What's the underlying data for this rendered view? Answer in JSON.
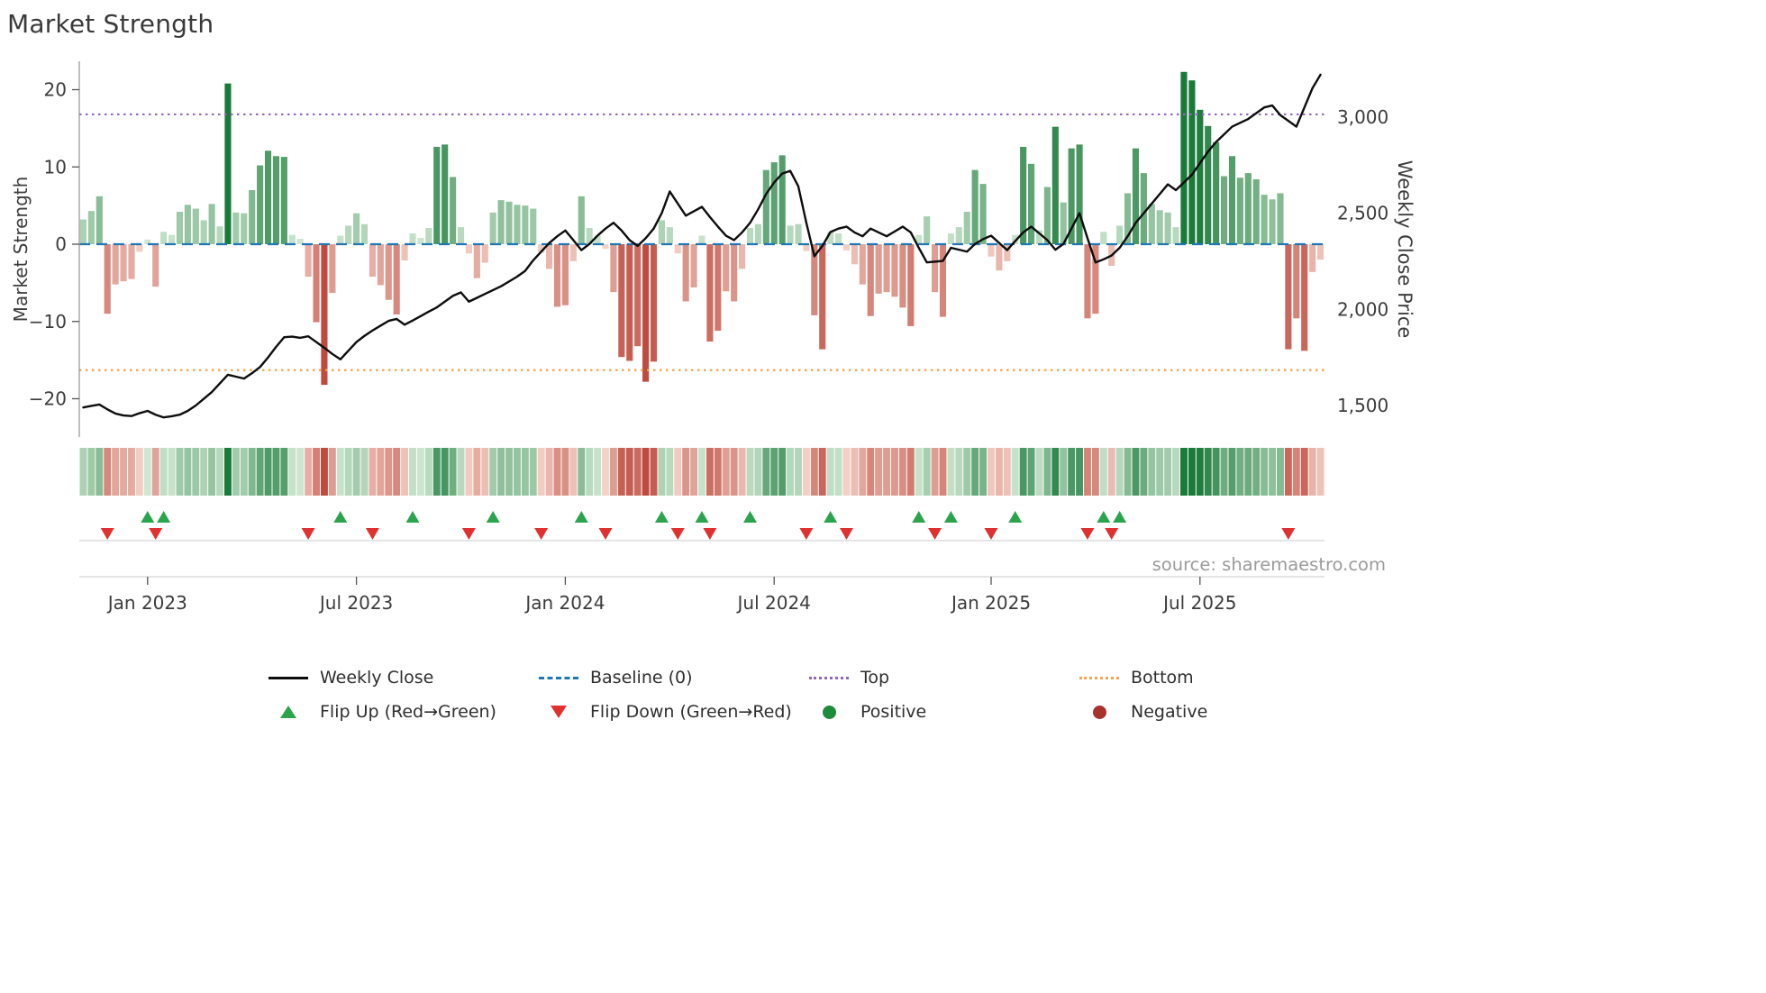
{
  "title": "Market Strength",
  "source": "source: sharemaestro.com",
  "axes": {
    "left_label": "Market Strength",
    "right_label": "Weekly Close Price",
    "left_ticks": [
      "20",
      "10",
      "0",
      "−10",
      "−20"
    ],
    "left_tick_values": [
      20,
      10,
      0,
      -10,
      -20
    ],
    "right_ticks": [
      "3,000",
      "2,500",
      "2,000",
      "1,500"
    ],
    "right_tick_values": [
      3000,
      2500,
      2000,
      1500
    ],
    "x_ticks": [
      "Jan 2023",
      "Jul 2023",
      "Jan 2024",
      "Jul 2024",
      "Jan 2025",
      "Jul 2025"
    ],
    "x_tick_indices": [
      8,
      34,
      60,
      86,
      113,
      139
    ]
  },
  "chart_data": {
    "type": "bar+line",
    "title": "Market Strength",
    "x_unit": "week",
    "n_points": 155,
    "baseline": 0,
    "top_threshold": 16.8,
    "bottom_threshold": -16.3,
    "strength_ylim": [
      -25,
      23.7
    ],
    "price_ylim": [
      1336,
      3290
    ],
    "legend_position": "bottom",
    "grid": false,
    "subplots": [
      "main bar+line panel",
      "strength heatmap strip",
      "flip marker band"
    ],
    "series": [
      {
        "name": "Market Strength",
        "type": "bar",
        "axis": "left",
        "values": [
          3.2,
          4.3,
          6.2,
          -9.0,
          -5.2,
          -4.8,
          -4.5,
          -1.0,
          0.6,
          -5.5,
          1.6,
          1.2,
          4.2,
          5.1,
          4.6,
          3.1,
          5.2,
          2.3,
          20.8,
          4.1,
          4.0,
          7.0,
          10.2,
          12.1,
          11.4,
          11.3,
          1.2,
          0.7,
          -4.2,
          -10.1,
          -18.2,
          -6.3,
          1.1,
          2.4,
          4.0,
          2.6,
          -4.2,
          -5.3,
          -7.2,
          -9.1,
          -2.1,
          1.4,
          0.8,
          2.1,
          12.6,
          12.9,
          8.7,
          2.2,
          -1.2,
          -4.4,
          -2.4,
          4.1,
          5.7,
          5.5,
          5.1,
          5.0,
          4.6,
          -1.1,
          -3.2,
          -8.1,
          -7.9,
          -2.2,
          6.2,
          2.1,
          1.1,
          -0.6,
          -6.2,
          -14.6,
          -15.1,
          -13.2,
          -17.8,
          -15.2,
          3.1,
          2.2,
          -1.2,
          -7.4,
          -5.6,
          1.1,
          -12.6,
          -11.2,
          -6.1,
          -7.4,
          -3.2,
          2.1,
          2.6,
          9.6,
          10.6,
          11.5,
          2.4,
          2.6,
          -0.9,
          -9.2,
          -13.6,
          1.6,
          1.4,
          -0.8,
          -2.6,
          -5.2,
          -9.3,
          -6.4,
          -6.2,
          -6.8,
          -8.2,
          -10.6,
          1.2,
          3.6,
          -6.2,
          -9.4,
          1.4,
          2.2,
          4.2,
          9.6,
          7.8,
          -1.6,
          -3.4,
          -2.2,
          1.2,
          12.6,
          10.4,
          1.8,
          7.4,
          15.2,
          5.4,
          12.4,
          12.9,
          -9.6,
          -9.0,
          1.6,
          -2.8,
          2.4,
          6.6,
          12.4,
          9.2,
          5.2,
          4.4,
          4.1,
          2.2,
          22.3,
          21.2,
          17.4,
          15.3,
          13.2,
          8.8,
          11.4,
          8.6,
          9.2,
          8.4,
          6.4,
          5.8,
          6.6,
          -13.6,
          -9.6,
          -13.8,
          -3.6,
          -2.0
        ]
      },
      {
        "name": "Weekly Close",
        "type": "line",
        "axis": "right",
        "values": [
          1490,
          1498,
          1505,
          1480,
          1458,
          1448,
          1445,
          1460,
          1472,
          1452,
          1438,
          1444,
          1452,
          1472,
          1500,
          1535,
          1570,
          1615,
          1660,
          1650,
          1640,
          1668,
          1700,
          1750,
          1805,
          1855,
          1858,
          1852,
          1860,
          1830,
          1800,
          1768,
          1740,
          1785,
          1830,
          1862,
          1890,
          1915,
          1940,
          1950,
          1920,
          1942,
          1965,
          1988,
          2010,
          2040,
          2070,
          2088,
          2040,
          2060,
          2080,
          2100,
          2120,
          2145,
          2170,
          2200,
          2255,
          2300,
          2345,
          2380,
          2410,
          2360,
          2308,
          2340,
          2383,
          2420,
          2450,
          2410,
          2360,
          2330,
          2370,
          2420,
          2500,
          2613,
          2550,
          2487,
          2510,
          2533,
          2480,
          2430,
          2383,
          2360,
          2400,
          2450,
          2520,
          2600,
          2660,
          2706,
          2720,
          2640,
          2450,
          2276,
          2330,
          2402,
          2420,
          2430,
          2400,
          2380,
          2420,
          2400,
          2380,
          2405,
          2430,
          2400,
          2320,
          2244,
          2248,
          2252,
          2320,
          2310,
          2300,
          2340,
          2365,
          2383,
          2345,
          2308,
          2355,
          2400,
          2430,
          2395,
          2360,
          2310,
          2340,
          2420,
          2500,
          2370,
          2244,
          2260,
          2280,
          2320,
          2380,
          2450,
          2500,
          2550,
          2600,
          2650,
          2620,
          2660,
          2700,
          2760,
          2820,
          2870,
          2910,
          2950,
          2970,
          2990,
          3020,
          3050,
          3060,
          3010,
          2980,
          2950,
          3050,
          3150,
          3220
        ]
      }
    ],
    "flip_rule": {
      "up": "bar sign changes negative to positive",
      "down": "bar sign changes positive to negative"
    }
  },
  "legend": [
    {
      "label": "Weekly Close",
      "swatch": "line",
      "color": "#0d0d0d"
    },
    {
      "label": "Baseline (0)",
      "swatch": "dashed-line",
      "color": "#2077b4"
    },
    {
      "label": "Top",
      "swatch": "dotted-line",
      "color": "#9467bd"
    },
    {
      "label": "Bottom",
      "swatch": "dotted-line",
      "color": "#f0a450"
    },
    {
      "label": "Flip Up (Red→Green)",
      "swatch": "triangle-up",
      "color": "#2ca44e"
    },
    {
      "label": "Flip Down (Green→Red)",
      "swatch": "triangle-down",
      "color": "#e03131"
    },
    {
      "label": "Positive",
      "swatch": "circle",
      "color": "#1e8a3c"
    },
    {
      "label": "Negative",
      "swatch": "circle",
      "color": "#a8322d"
    }
  ],
  "colors": {
    "pos_strong": "#1a7a3a",
    "pos_weak": "#dcefdc",
    "neg_strong": "#bf4a3e",
    "neg_weak": "#f7dcd2",
    "line": "#0d0d0d",
    "baseline": "#2077b4",
    "top": "#9467bd",
    "bottom": "#f0a450",
    "flip_up": "#2ca44e",
    "flip_down": "#e03131",
    "axis_text": "#3c3c3c",
    "spine": "#9a9a9a",
    "separator": "#d5d5d5",
    "source_text": "#9b9b9b"
  }
}
